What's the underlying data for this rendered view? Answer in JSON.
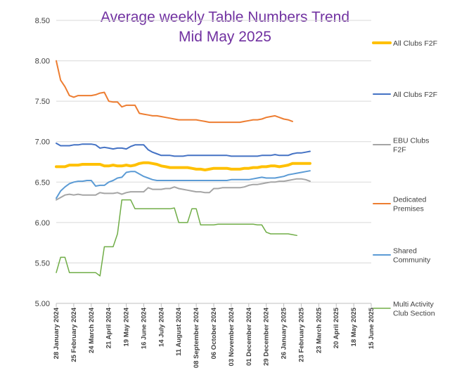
{
  "chart_data": {
    "type": "line",
    "title_lines": [
      "Average weekly Table Numbers Trend",
      "Mid May 2025"
    ],
    "title_color": "#7030A0",
    "ylim": [
      5.0,
      8.5
    ],
    "y_ticks": [
      "5.00",
      "5.50",
      "6.00",
      "6.50",
      "7.00",
      "7.50",
      "8.00",
      "8.50"
    ],
    "y_tick_values": [
      5.0,
      5.5,
      6.0,
      6.5,
      7.0,
      7.5,
      8.0,
      8.5
    ],
    "grid": "horizontal",
    "legend_position": "right",
    "x_tick_labels": [
      "28 January 2024",
      "25 February 2024",
      "24 March 2024",
      "21 April 2024",
      "19 May 2024",
      "16 June 2024",
      "14 July 2024",
      "11 August 2024",
      "08 September 2024",
      "06 October 2024",
      "03 November 2024",
      "01 December 2024",
      "29 December 2024",
      "26 January 2025",
      "23 February 2025",
      "23 March 2025",
      "20 April 2025",
      "18 May 2025",
      "15 June 2025"
    ],
    "x_ticks_num_points": 73,
    "series": [
      {
        "name": "All Clubs F2F",
        "color": "#FFC000",
        "width": 4,
        "values": [
          6.69,
          6.69,
          6.69,
          6.71,
          6.71,
          6.71,
          6.72,
          6.72,
          6.72,
          6.72,
          6.72,
          6.7,
          6.7,
          6.71,
          6.7,
          6.7,
          6.71,
          6.7,
          6.71,
          6.73,
          6.74,
          6.74,
          6.73,
          6.72,
          6.7,
          6.69,
          6.68,
          6.68,
          6.68,
          6.68,
          6.68,
          6.67,
          6.66,
          6.66,
          6.65,
          6.66,
          6.67,
          6.67,
          6.67,
          6.67,
          6.66,
          6.66,
          6.66,
          6.67,
          6.67,
          6.68,
          6.68,
          6.69,
          6.69,
          6.7,
          6.7,
          6.69,
          6.7,
          6.71,
          6.73,
          6.73,
          6.73,
          6.73,
          6.73
        ]
      },
      {
        "name": "All Clubs F2F",
        "color": "#4472C4",
        "width": 2,
        "values": [
          6.98,
          6.95,
          6.95,
          6.95,
          6.96,
          6.96,
          6.97,
          6.97,
          6.97,
          6.96,
          6.92,
          6.93,
          6.92,
          6.91,
          6.92,
          6.92,
          6.91,
          6.94,
          6.96,
          6.96,
          6.96,
          6.9,
          6.87,
          6.85,
          6.83,
          6.83,
          6.83,
          6.82,
          6.82,
          6.82,
          6.83,
          6.83,
          6.83,
          6.83,
          6.83,
          6.83,
          6.83,
          6.83,
          6.83,
          6.83,
          6.82,
          6.82,
          6.82,
          6.82,
          6.82,
          6.82,
          6.82,
          6.83,
          6.83,
          6.83,
          6.84,
          6.83,
          6.83,
          6.83,
          6.85,
          6.86,
          6.86,
          6.87,
          6.88
        ]
      },
      {
        "name": "EBU Clubs F2F",
        "color": "#A5A5A5",
        "width": 2,
        "values": [
          6.28,
          6.31,
          6.34,
          6.35,
          6.34,
          6.35,
          6.34,
          6.34,
          6.34,
          6.34,
          6.37,
          6.36,
          6.36,
          6.36,
          6.37,
          6.35,
          6.37,
          6.38,
          6.38,
          6.38,
          6.38,
          6.43,
          6.41,
          6.41,
          6.41,
          6.42,
          6.42,
          6.44,
          6.42,
          6.41,
          6.4,
          6.39,
          6.38,
          6.38,
          6.37,
          6.37,
          6.42,
          6.42,
          6.43,
          6.43,
          6.43,
          6.43,
          6.43,
          6.44,
          6.46,
          6.47,
          6.47,
          6.48,
          6.49,
          6.5,
          6.5,
          6.51,
          6.51,
          6.52,
          6.53,
          6.54,
          6.54,
          6.53,
          6.51
        ]
      },
      {
        "name": "Dedicated Premises",
        "color": "#ED7D31",
        "width": 2,
        "values": [
          8.0,
          7.76,
          7.68,
          7.57,
          7.55,
          7.57,
          7.57,
          7.57,
          7.57,
          7.58,
          7.6,
          7.61,
          7.5,
          7.49,
          7.49,
          7.43,
          7.45,
          7.45,
          7.45,
          7.35,
          7.34,
          7.33,
          7.32,
          7.32,
          7.31,
          7.3,
          7.29,
          7.28,
          7.27,
          7.27,
          7.27,
          7.27,
          7.27,
          7.26,
          7.25,
          7.24,
          7.24,
          7.24,
          7.24,
          7.24,
          7.24,
          7.24,
          7.24,
          7.25,
          7.26,
          7.27,
          7.27,
          7.28,
          7.3,
          7.31,
          7.32,
          7.3,
          7.28,
          7.27,
          7.25
        ]
      },
      {
        "name": "Shared Community",
        "color": "#5B9BD5",
        "width": 2,
        "values": [
          6.3,
          6.39,
          6.44,
          6.48,
          6.5,
          6.51,
          6.51,
          6.52,
          6.52,
          6.45,
          6.46,
          6.46,
          6.5,
          6.52,
          6.55,
          6.56,
          6.62,
          6.63,
          6.63,
          6.6,
          6.57,
          6.55,
          6.53,
          6.52,
          6.52,
          6.52,
          6.52,
          6.52,
          6.52,
          6.52,
          6.52,
          6.52,
          6.52,
          6.52,
          6.52,
          6.52,
          6.52,
          6.52,
          6.52,
          6.52,
          6.53,
          6.53,
          6.53,
          6.53,
          6.53,
          6.54,
          6.55,
          6.56,
          6.55,
          6.55,
          6.55,
          6.56,
          6.57,
          6.59,
          6.6,
          6.61,
          6.62,
          6.63,
          6.64
        ]
      },
      {
        "name": "Multi Activity Club Section",
        "color": "#70AD47",
        "width": 1.5,
        "values": [
          5.38,
          5.57,
          5.57,
          5.38,
          5.38,
          5.38,
          5.38,
          5.38,
          5.38,
          5.38,
          5.34,
          5.7,
          5.7,
          5.7,
          5.86,
          6.28,
          6.28,
          6.28,
          6.17,
          6.17,
          6.17,
          6.17,
          6.17,
          6.17,
          6.17,
          6.17,
          6.17,
          6.18,
          6.0,
          6.0,
          6.0,
          6.17,
          6.17,
          5.97,
          5.97,
          5.97,
          5.97,
          5.98,
          5.98,
          5.98,
          5.98,
          5.98,
          5.98,
          5.98,
          5.98,
          5.98,
          5.97,
          5.97,
          5.88,
          5.86,
          5.86,
          5.86,
          5.86,
          5.86,
          5.85,
          5.84
        ]
      }
    ]
  },
  "legend": [
    {
      "label_lines": [
        "All Clubs F2F"
      ]
    },
    {
      "label_lines": [
        "All Clubs F2F"
      ]
    },
    {
      "label_lines": [
        "EBU Clubs",
        "F2F"
      ]
    },
    {
      "label_lines": [
        "Dedicated",
        "Premises"
      ]
    },
    {
      "label_lines": [
        "Shared",
        "Community"
      ]
    },
    {
      "label_lines": [
        "Multi Activity",
        "Club Section"
      ]
    }
  ]
}
